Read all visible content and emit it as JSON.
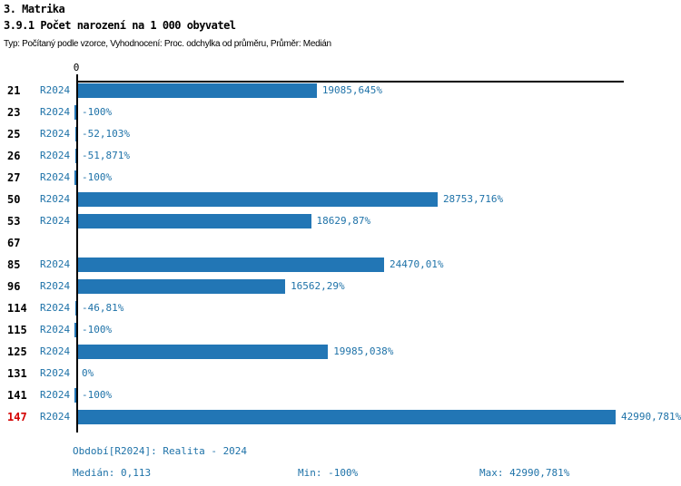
{
  "header": {
    "title": "3. Matrika",
    "subtitle": "3.9.1 Počet narození na 1 000 obyvatel",
    "meta": "Typ: Počítaný podle vzorce, Vyhodnocení: Proc. odchylka od průměru, Průměr: Medián"
  },
  "chart_data": {
    "type": "bar",
    "orientation": "horizontal",
    "title": "3.9.1 Počet narození na 1 000 obyvatel",
    "unit": "%",
    "axis_zero_label": "0",
    "series_label": "R2024",
    "xlim": [
      0,
      42990.781
    ],
    "max_value": 42990.781,
    "grid": false,
    "legend": "none",
    "categories": [
      "21",
      "23",
      "25",
      "26",
      "27",
      "50",
      "53",
      "67",
      "85",
      "96",
      "114",
      "115",
      "125",
      "131",
      "141",
      "147"
    ],
    "rows": [
      {
        "category": "21",
        "series": "R2024",
        "value": 19085.645,
        "label": "19085,645%",
        "highlight": false
      },
      {
        "category": "23",
        "series": "R2024",
        "value": -100,
        "label": "-100%",
        "highlight": false
      },
      {
        "category": "25",
        "series": "R2024",
        "value": -52.103,
        "label": "-52,103%",
        "highlight": false
      },
      {
        "category": "26",
        "series": "R2024",
        "value": -51.871,
        "label": "-51,871%",
        "highlight": false
      },
      {
        "category": "27",
        "series": "R2024",
        "value": -100,
        "label": "-100%",
        "highlight": false
      },
      {
        "category": "50",
        "series": "R2024",
        "value": 28753.716,
        "label": "28753,716%",
        "highlight": false
      },
      {
        "category": "53",
        "series": "R2024",
        "value": 18629.87,
        "label": "18629,87%",
        "highlight": false
      },
      {
        "category": "67",
        "series": null,
        "value": null,
        "label": null,
        "highlight": false
      },
      {
        "category": "85",
        "series": "R2024",
        "value": 24470.01,
        "label": "24470,01%",
        "highlight": false
      },
      {
        "category": "96",
        "series": "R2024",
        "value": 16562.29,
        "label": "16562,29%",
        "highlight": false
      },
      {
        "category": "114",
        "series": "R2024",
        "value": -46.81,
        "label": "-46,81%",
        "highlight": false
      },
      {
        "category": "115",
        "series": "R2024",
        "value": -100,
        "label": "-100%",
        "highlight": false
      },
      {
        "category": "125",
        "series": "R2024",
        "value": 19985.038,
        "label": "19985,038%",
        "highlight": false
      },
      {
        "category": "131",
        "series": "R2024",
        "value": 0,
        "label": "0%",
        "highlight": false
      },
      {
        "category": "141",
        "series": "R2024",
        "value": -100,
        "label": "-100%",
        "highlight": false
      },
      {
        "category": "147",
        "series": "R2024",
        "value": 42990.781,
        "label": "42990,781%",
        "highlight": true
      }
    ],
    "highlight_category": "147"
  },
  "footer": {
    "period": "Období[R2024]: Realita - 2024",
    "median": "Medián: 0,113",
    "min": "Min: -100%",
    "max": "Max: 42990,781%"
  },
  "colors": {
    "bar": "#2276b5",
    "text_blue": "#1e72a8",
    "highlight": "#d40000",
    "axis": "#000000",
    "background": "#ffffff"
  }
}
